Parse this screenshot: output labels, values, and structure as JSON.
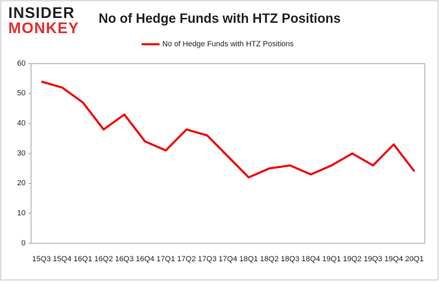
{
  "logo": {
    "line1": "INSIDER",
    "line2": "MONKEY"
  },
  "chart_data": {
    "type": "line",
    "title": "No of Hedge Funds with HTZ Positions",
    "categories": [
      "15Q3",
      "15Q4",
      "16Q1",
      "16Q2",
      "16Q3",
      "16Q4",
      "17Q1",
      "17Q2",
      "17Q3",
      "17Q4",
      "18Q1",
      "18Q2",
      "18Q3",
      "18Q4",
      "19Q1",
      "19Q2",
      "19Q3",
      "19Q4",
      "20Q1"
    ],
    "series": [
      {
        "name": "No of Hedge Funds with HTZ Positions",
        "color": "#ee0000",
        "values": [
          54,
          52,
          47,
          38,
          43,
          34,
          31,
          38,
          36,
          29,
          22,
          25,
          26,
          23,
          26,
          30,
          26,
          33,
          24
        ]
      }
    ],
    "ylim": [
      0,
      60
    ],
    "yticks": [
      0,
      10,
      20,
      30,
      40,
      50,
      60
    ],
    "legend": "top"
  }
}
